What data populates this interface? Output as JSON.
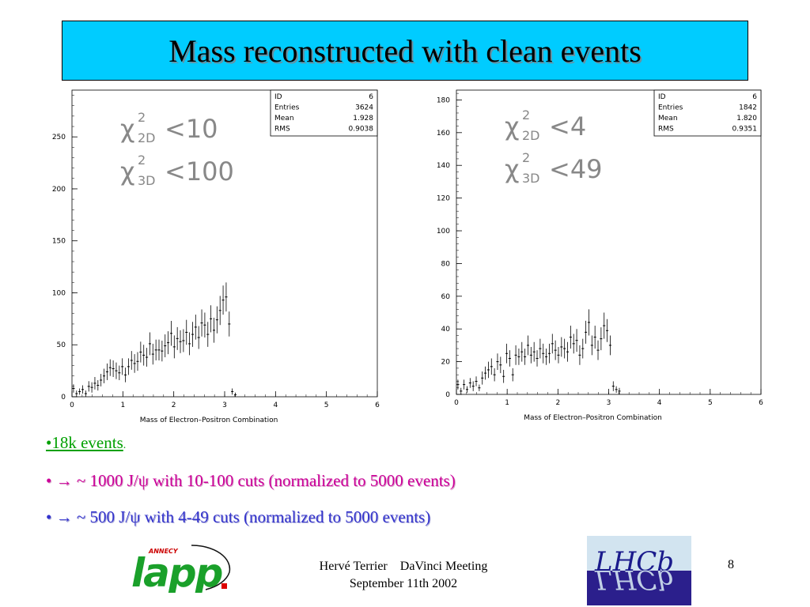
{
  "slide": {
    "title": "Mass reconstructed with clean events",
    "bullets": {
      "b1_text": "•18k events",
      "b1_dot": ".",
      "b2_text": "• → ~ 1000 J/ψ with 10-100 cuts (normalized to 5000 events)",
      "b3_text": "• → ~ 500 J/ψ with 4-49 cuts (normalized to 5000 events)"
    },
    "footer": {
      "author_meeting": "Hervé Terrier    DaVinci Meeting",
      "date": "September 11th 2002",
      "page_number": "8"
    },
    "logos": {
      "lapp_small": "ANNECY",
      "lapp_main": "lapp",
      "lhcb_main": "LHCb"
    },
    "colors": {
      "title_bg": "#00ccff",
      "bullet1": "#00a000",
      "bullet2": "#cc0099",
      "bullet3": "#3333cc"
    }
  },
  "chart_data": [
    {
      "type": "bar",
      "style": "histogram-with-error-bars",
      "title": "",
      "xlabel": "Mass of Electron–Positron  Combination",
      "ylabel": "",
      "xlim": [
        0,
        6
      ],
      "ylim": [
        0,
        295
      ],
      "xticks": [
        0,
        1,
        2,
        3,
        4,
        5,
        6
      ],
      "yticks": [
        0,
        50,
        100,
        150,
        200,
        250
      ],
      "grid": false,
      "annotations": [
        {
          "main": "χ",
          "sup": "2",
          "sub": "2D",
          "rel": "<10"
        },
        {
          "main": "χ",
          "sup": "2",
          "sub": "3D",
          "rel": "<100"
        }
      ],
      "stats": [
        {
          "label": "ID",
          "value": "6"
        },
        {
          "label": "Entries",
          "value": "3624"
        },
        {
          "label": "Mean",
          "value": "1.928"
        },
        {
          "label": "RMS",
          "value": "0.9038"
        }
      ],
      "x": [
        0.03,
        0.09,
        0.15,
        0.21,
        0.27,
        0.33,
        0.39,
        0.45,
        0.51,
        0.57,
        0.63,
        0.69,
        0.75,
        0.81,
        0.87,
        0.93,
        0.99,
        1.05,
        1.11,
        1.17,
        1.23,
        1.29,
        1.35,
        1.41,
        1.47,
        1.53,
        1.59,
        1.65,
        1.71,
        1.77,
        1.83,
        1.89,
        1.95,
        2.01,
        2.07,
        2.13,
        2.19,
        2.25,
        2.31,
        2.37,
        2.43,
        2.49,
        2.55,
        2.61,
        2.67,
        2.73,
        2.79,
        2.85,
        2.91,
        2.97,
        3.03,
        3.09,
        3.15,
        3.21
      ],
      "values": [
        8,
        3,
        5,
        7,
        3,
        10,
        9,
        13,
        11,
        16,
        20,
        24,
        28,
        27,
        25,
        23,
        29,
        21,
        29,
        35,
        32,
        34,
        43,
        40,
        38,
        51,
        41,
        45,
        45,
        44,
        49,
        52,
        61,
        48,
        56,
        53,
        54,
        62,
        51,
        60,
        67,
        57,
        71,
        69,
        60,
        75,
        64,
        74,
        83,
        93,
        96,
        70,
        5,
        2
      ],
      "errors": [
        4,
        3,
        3,
        4,
        3,
        5,
        5,
        6,
        5,
        6,
        7,
        8,
        8,
        8,
        8,
        7,
        8,
        7,
        8,
        9,
        9,
        9,
        10,
        10,
        9,
        11,
        10,
        10,
        10,
        10,
        11,
        11,
        12,
        11,
        11,
        11,
        11,
        12,
        11,
        12,
        12,
        11,
        13,
        12,
        12,
        13,
        12,
        13,
        14,
        14,
        14,
        12,
        3,
        2
      ]
    },
    {
      "type": "bar",
      "style": "histogram-with-error-bars",
      "title": "",
      "xlabel": "Mass of Electron–Positron  Combination",
      "ylabel": "",
      "xlim": [
        0,
        6
      ],
      "ylim": [
        0,
        186
      ],
      "xticks": [
        0,
        1,
        2,
        3,
        4,
        5,
        6
      ],
      "yticks": [
        0,
        20,
        40,
        60,
        80,
        100,
        120,
        140,
        160,
        180
      ],
      "grid": false,
      "annotations": [
        {
          "main": "χ",
          "sup": "2",
          "sub": "2D",
          "rel": "<4"
        },
        {
          "main": "χ",
          "sup": "2",
          "sub": "3D",
          "rel": "<49"
        }
      ],
      "stats": [
        {
          "label": "ID",
          "value": "6"
        },
        {
          "label": "Entries",
          "value": "1842"
        },
        {
          "label": "Mean",
          "value": "1.820"
        },
        {
          "label": "RMS",
          "value": "0.9351"
        }
      ],
      "x": [
        0.03,
        0.09,
        0.15,
        0.21,
        0.27,
        0.33,
        0.39,
        0.45,
        0.51,
        0.57,
        0.63,
        0.69,
        0.75,
        0.81,
        0.87,
        0.93,
        0.99,
        1.05,
        1.11,
        1.17,
        1.23,
        1.29,
        1.35,
        1.41,
        1.47,
        1.53,
        1.59,
        1.65,
        1.71,
        1.77,
        1.83,
        1.89,
        1.95,
        2.01,
        2.07,
        2.13,
        2.19,
        2.25,
        2.31,
        2.37,
        2.43,
        2.49,
        2.55,
        2.61,
        2.67,
        2.73,
        2.79,
        2.85,
        2.91,
        2.97,
        3.03,
        3.09,
        3.15,
        3.21
      ],
      "values": [
        6,
        2,
        6,
        3,
        7,
        5,
        8,
        4,
        10,
        13,
        15,
        17,
        12,
        20,
        18,
        11,
        25,
        22,
        12,
        24,
        23,
        26,
        23,
        30,
        24,
        26,
        22,
        28,
        25,
        23,
        25,
        31,
        27,
        24,
        29,
        28,
        26,
        35,
        31,
        33,
        24,
        28,
        38,
        44,
        30,
        35,
        27,
        34,
        42,
        39,
        30,
        5,
        3,
        2
      ],
      "errors": [
        3,
        2,
        3,
        2,
        3,
        3,
        3,
        2,
        4,
        4,
        5,
        5,
        4,
        5,
        5,
        4,
        6,
        5,
        4,
        6,
        5,
        6,
        5,
        6,
        5,
        6,
        5,
        6,
        6,
        5,
        6,
        6,
        6,
        5,
        6,
        6,
        6,
        7,
        6,
        7,
        6,
        6,
        7,
        8,
        6,
        7,
        6,
        7,
        8,
        7,
        6,
        3,
        2,
        2
      ]
    }
  ]
}
